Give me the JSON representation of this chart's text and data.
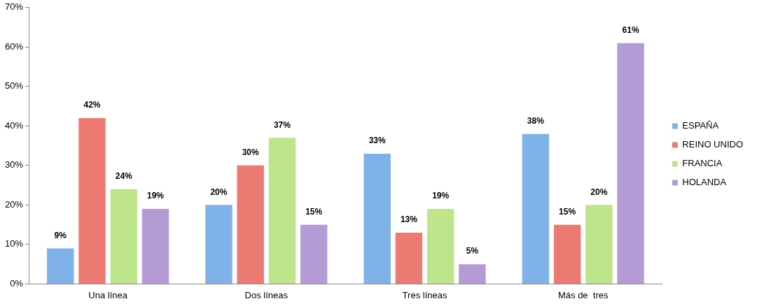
{
  "chart_data": {
    "type": "bar",
    "categories": [
      "Una línea",
      "Dos líneas",
      "Tres líneas",
      "Más de  tres"
    ],
    "series": [
      {
        "name": "ESPAÑA",
        "color": "#7fb2e8",
        "values": [
          9,
          20,
          33,
          38
        ]
      },
      {
        "name": "REINO UNIDO",
        "color": "#ec7a72",
        "values": [
          42,
          30,
          13,
          15
        ]
      },
      {
        "name": "FRANCIA",
        "color": "#bfe58a",
        "values": [
          24,
          37,
          19,
          20
        ]
      },
      {
        "name": "HOLANDA",
        "color": "#b59bd6",
        "values": [
          19,
          15,
          5,
          61
        ]
      }
    ],
    "ylim": [
      0,
      70
    ],
    "yticks": [
      {
        "value": 0,
        "label": "0%"
      },
      {
        "value": 10,
        "label": "10%"
      },
      {
        "value": 20,
        "label": "20%"
      },
      {
        "value": 30,
        "label": "30%"
      },
      {
        "value": 40,
        "label": "40%"
      },
      {
        "value": 50,
        "label": "50%"
      },
      {
        "value": 60,
        "label": "60%"
      },
      {
        "value": 70,
        "label": "70%"
      }
    ],
    "value_labels": [
      [
        "9%",
        "20%",
        "33%",
        "38%"
      ],
      [
        "42%",
        "30%",
        "13%",
        "15%"
      ],
      [
        "24%",
        "37%",
        "19%",
        "20%"
      ],
      [
        "19%",
        "15%",
        "5%",
        "61%"
      ]
    ],
    "grid": false,
    "legend": "right"
  }
}
